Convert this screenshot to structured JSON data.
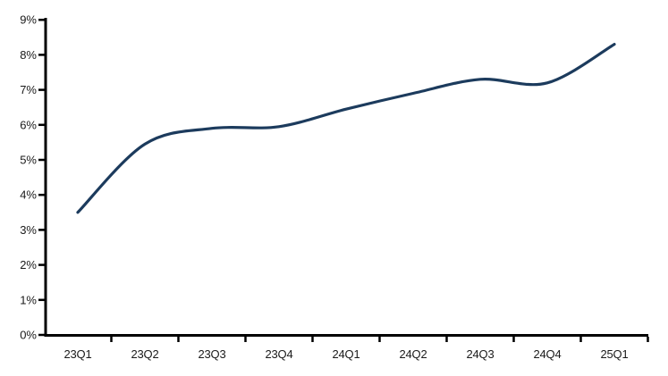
{
  "chart_data": {
    "type": "line",
    "categories": [
      "23Q1",
      "23Q2",
      "23Q3",
      "23Q4",
      "24Q1",
      "24Q2",
      "24Q3",
      "24Q4",
      "25Q1"
    ],
    "values": [
      3.5,
      5.45,
      5.9,
      5.95,
      6.45,
      6.9,
      7.3,
      7.2,
      8.3
    ],
    "y_ticks": [
      0,
      1,
      2,
      3,
      4,
      5,
      6,
      7,
      8,
      9
    ],
    "y_tick_labels": [
      "0%",
      "1%",
      "2%",
      "3%",
      "4%",
      "5%",
      "6%",
      "7%",
      "8%",
      "9%"
    ],
    "ylim": [
      0,
      9
    ],
    "grid": false,
    "legend": "none",
    "smooth": true,
    "colors": {
      "line": "#1c3b5d",
      "axis": "#000000",
      "tick_label": "#1a1a1a",
      "background": "#ffffff"
    }
  }
}
